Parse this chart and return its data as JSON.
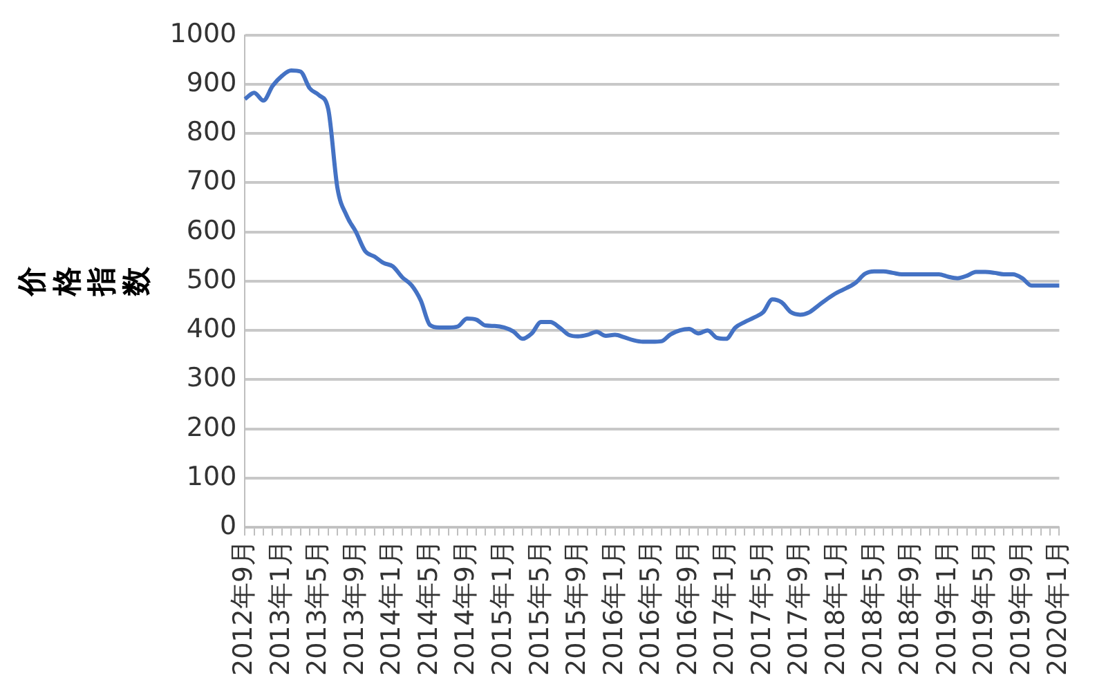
{
  "chart_data": {
    "type": "line",
    "ylabel": "价格指数",
    "categories": [
      "2012年9月",
      null,
      null,
      null,
      "2013年1月",
      null,
      null,
      null,
      "2013年5月",
      null,
      null,
      null,
      "2013年9月",
      null,
      null,
      null,
      "2014年1月",
      null,
      null,
      null,
      "2014年5月",
      null,
      null,
      null,
      "2014年9月",
      null,
      null,
      null,
      "2015年1月",
      null,
      null,
      null,
      "2015年5月",
      null,
      null,
      null,
      "2015年9月",
      null,
      null,
      null,
      "2016年1月",
      null,
      null,
      null,
      "2016年5月",
      null,
      null,
      null,
      "2016年9月",
      null,
      null,
      null,
      "2017年1月",
      null,
      null,
      null,
      "2017年5月",
      null,
      null,
      null,
      "2017年9月",
      null,
      null,
      null,
      "2018年1月",
      null,
      null,
      null,
      "2018年5月",
      null,
      null,
      null,
      "2018年9月",
      null,
      null,
      null,
      "2019年1月",
      null,
      null,
      null,
      "2019年5月",
      null,
      null,
      null,
      "2019年9月",
      null,
      null,
      null,
      "2020年1月"
    ],
    "series": [
      {
        "color": "#4472c4",
        "values": [
          870,
          883,
          867,
          897,
          917,
          928,
          926,
          892,
          878,
          850,
          689,
          633,
          600,
          561,
          550,
          537,
          530,
          508,
          492,
          461,
          411,
          406,
          406,
          408,
          424,
          422,
          410,
          409,
          406,
          398,
          383,
          394,
          417,
          417,
          406,
          391,
          388,
          391,
          397,
          389,
          391,
          386,
          380,
          377,
          377,
          378,
          392,
          400,
          403,
          394,
          400,
          385,
          383,
          406,
          417,
          426,
          437,
          463,
          457,
          437,
          432,
          437,
          451,
          465,
          477,
          486,
          497,
          515,
          520,
          520,
          517,
          514,
          514,
          514,
          514,
          514,
          509,
          506,
          511,
          519,
          519,
          517,
          514,
          514,
          506,
          491,
          491,
          491,
          491
        ]
      }
    ],
    "ylim": [
      0,
      1000
    ],
    "yticks": [
      0,
      100,
      200,
      300,
      400,
      500,
      600,
      700,
      800,
      900,
      1000
    ],
    "grid": "y",
    "legend": false,
    "marker": "none",
    "line_style": "solid"
  }
}
